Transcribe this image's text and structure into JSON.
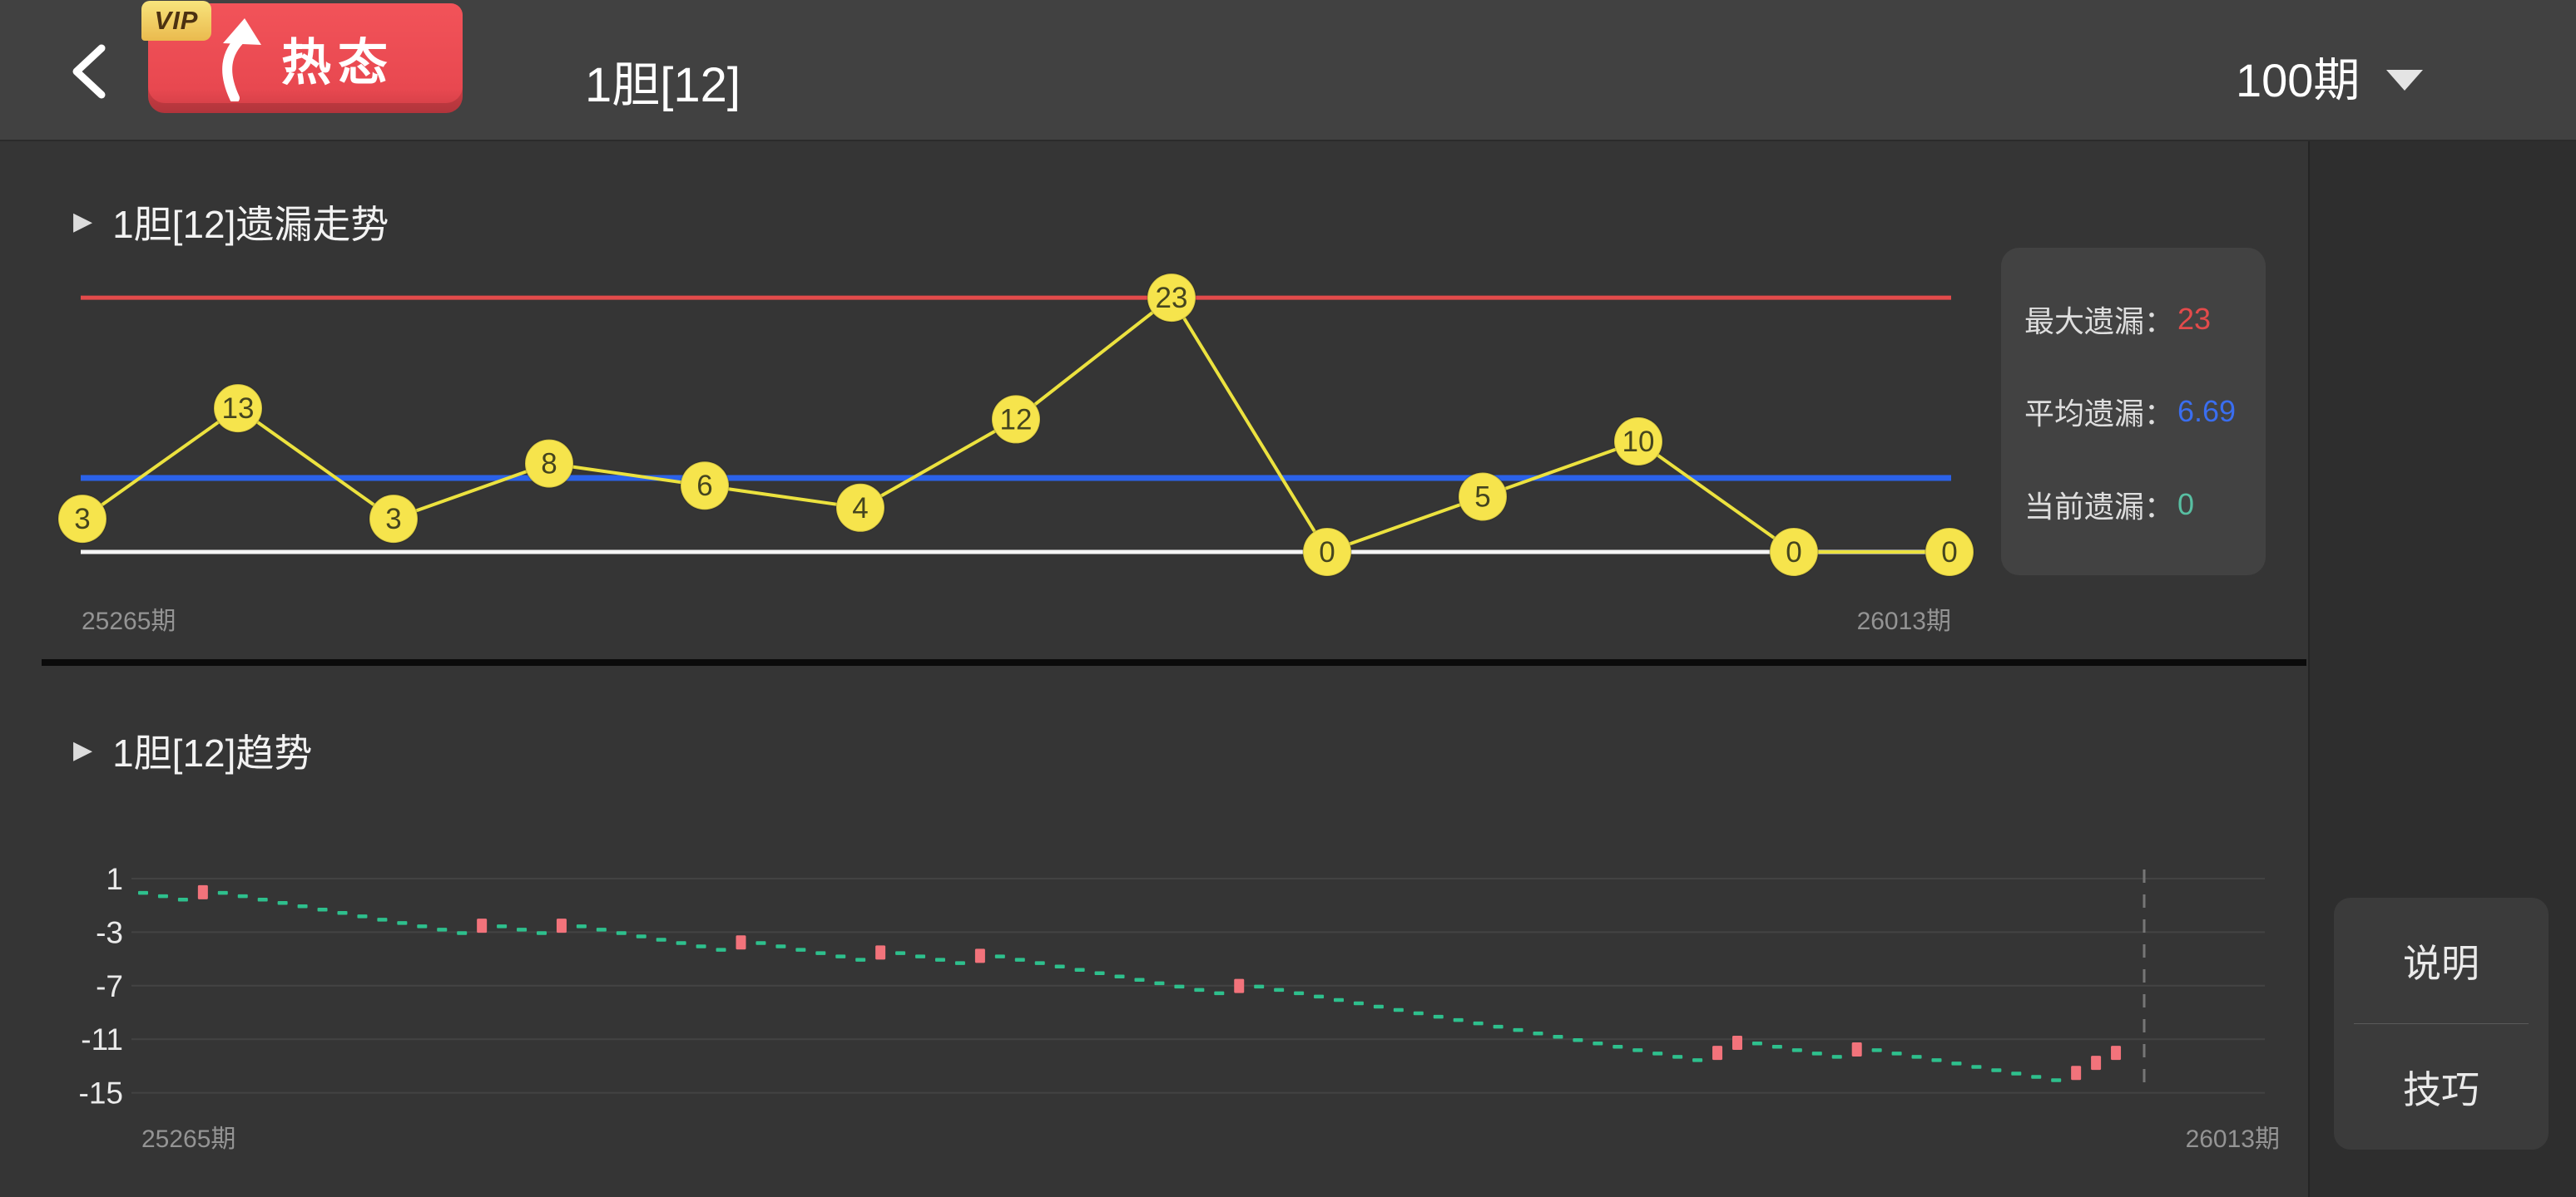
{
  "header": {
    "vip_tag": "VIP",
    "hot_badge": "热态",
    "title": "1胆[12]",
    "period_selector": "100期"
  },
  "omission_section": {
    "toggle_icon": "▶",
    "title": "1胆[12]遗漏走势",
    "x_start_label": "25265期",
    "x_end_label": "26013期",
    "stats": [
      {
        "label": "最大遗漏：",
        "value": "23",
        "color": "#e34b4b"
      },
      {
        "label": "平均遗漏：",
        "value": "6.69",
        "color": "#3a6ef0"
      },
      {
        "label": "当前遗漏：",
        "value": "0",
        "color": "#58bfa2"
      }
    ]
  },
  "trend_section": {
    "toggle_icon": "▶",
    "title": "1胆[12]趋势",
    "x_start_label": "25265期",
    "x_end_label": "26013期",
    "buttons": [
      {
        "label": "说明"
      },
      {
        "label": "技巧"
      }
    ]
  },
  "colors": {
    "max_line": "#e34b4b",
    "avg_line": "#2b62e9",
    "zero_line": "#f5f5f5",
    "point_fill": "#f6e44c",
    "point_line": "#ece23f",
    "point_text": "#45451f",
    "axis_text": "#949494",
    "tick_text": "#eaeaea",
    "grid_line": "rgba(255,255,255,0.07)",
    "dash_marker": "#2ec08d",
    "hit_marker": "#f2737b",
    "cursor_line": "#767676"
  },
  "chart_data": [
    {
      "type": "line",
      "title": "1胆[12]遗漏走势",
      "values": [
        3,
        13,
        3,
        8,
        6,
        4,
        12,
        23,
        0,
        5,
        10,
        0,
        0
      ],
      "max_line": 23,
      "avg_line": 6.69,
      "zero_line": 0,
      "x_start_label": "25265期",
      "x_end_label": "26013期",
      "ylim": [
        0,
        23
      ],
      "legend_position": "none",
      "grid": false
    },
    {
      "type": "scatter",
      "title": "1胆[12]趋势",
      "y_ticks": [
        1,
        -3,
        -7,
        -11,
        -15
      ],
      "ylim": [
        -15,
        1
      ],
      "grid": true,
      "x_start_label": "25265期",
      "x_end_label": "26013期",
      "omission_pattern": [
        3,
        13,
        3,
        8,
        6,
        4,
        12,
        23,
        0,
        5,
        10,
        0,
        0
      ],
      "hit_indices": [
        4,
        18,
        22,
        31,
        38,
        43,
        56,
        80,
        81,
        87,
        98,
        99,
        100
      ],
      "values": [
        -0.05,
        -0.3,
        -0.55,
        0.2,
        -0.05,
        -0.3,
        -0.55,
        -0.8,
        -1.05,
        -1.3,
        -1.55,
        -1.8,
        -2.05,
        -2.3,
        -2.55,
        -2.8,
        -3.05,
        -2.3,
        -2.55,
        -2.8,
        -3.05,
        -2.3,
        -2.55,
        -2.8,
        -3.05,
        -3.3,
        -3.55,
        -3.8,
        -4.05,
        -4.3,
        -3.55,
        -3.8,
        -4.05,
        -4.3,
        -4.55,
        -4.8,
        -5.05,
        -4.3,
        -4.55,
        -4.8,
        -5.05,
        -5.3,
        -4.55,
        -4.8,
        -5.05,
        -5.3,
        -5.55,
        -5.8,
        -6.05,
        -6.3,
        -6.55,
        -6.8,
        -7.05,
        -7.3,
        -7.55,
        -6.8,
        -7.05,
        -7.3,
        -7.55,
        -7.8,
        -8.05,
        -8.3,
        -8.55,
        -8.8,
        -9.05,
        -9.3,
        -9.55,
        -9.8,
        -10.05,
        -10.3,
        -10.55,
        -10.8,
        -11.05,
        -11.3,
        -11.55,
        -11.8,
        -12.05,
        -12.3,
        -12.55,
        -11.8,
        -11.05,
        -11.3,
        -11.55,
        -11.8,
        -12.05,
        -12.3,
        -11.55,
        -11.8,
        -12.05,
        -12.3,
        -12.55,
        -12.8,
        -13.05,
        -13.3,
        -13.55,
        -13.8,
        -14.05,
        -13.3,
        -12.55,
        -11.8
      ]
    }
  ]
}
